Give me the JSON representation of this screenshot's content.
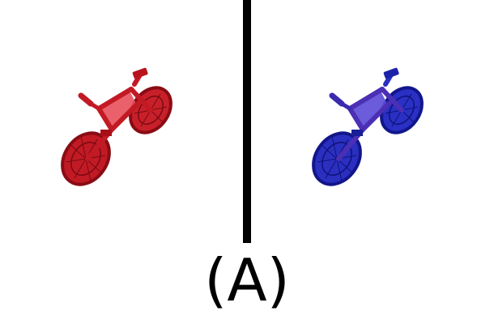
{
  "figure": {
    "label": "(A)",
    "left_bicycle": {
      "icon": "bicycle-icon",
      "color": "#b8141e",
      "light_color": "#e8505c"
    },
    "right_bicycle": {
      "icon": "bicycle-icon",
      "color": "#1c22a8",
      "light_color": "#5a4ad6"
    },
    "divider_color": "#000000"
  }
}
